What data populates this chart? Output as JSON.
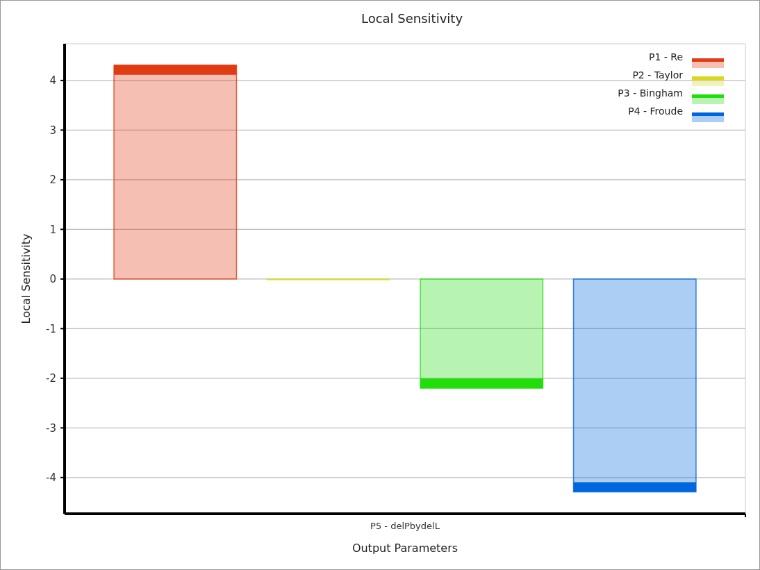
{
  "chart_data": {
    "type": "bar",
    "title": "Local Sensitivity",
    "xlabel": "Output Parameters",
    "ylabel": "Local Sensitivity",
    "categories": [
      "P5 - delPbydelL"
    ],
    "series": [
      {
        "name": "P1 - Re",
        "color": "#e03c14",
        "values": [
          4.31
        ]
      },
      {
        "name": "P2 - Taylor",
        "color": "#d8d820",
        "values": [
          0
        ]
      },
      {
        "name": "P3 - Bingham",
        "color": "#22dd0c",
        "values": [
          -2.2
        ]
      },
      {
        "name": "P4 - Froude",
        "color": "#0066dd",
        "values": [
          -4.29
        ]
      }
    ],
    "ylim": [
      -4.73,
      4.74
    ],
    "yticks": [
      -4,
      -3,
      -2,
      -1,
      0,
      1,
      2,
      3,
      4
    ],
    "grid": "y",
    "legend": "top right"
  }
}
